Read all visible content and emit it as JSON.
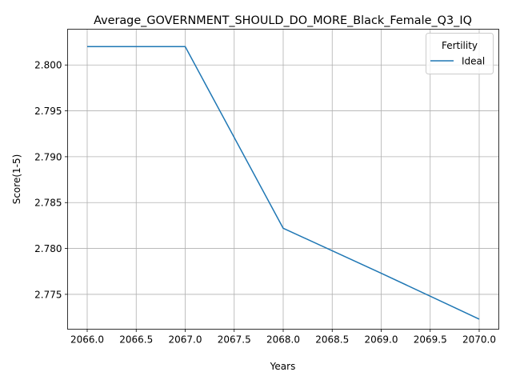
{
  "chart_data": {
    "type": "line",
    "title": "Average_GOVERNMENT_SHOULD_DO_MORE_Black_Female_Q3_IQ",
    "xlabel": "Years",
    "ylabel": "Score(1-5)",
    "xlim": [
      2065.8,
      2070.2
    ],
    "ylim": [
      2.7712,
      2.8039
    ],
    "x_ticks": [
      2066.0,
      2066.5,
      2067.0,
      2067.5,
      2068.0,
      2068.5,
      2069.0,
      2069.5,
      2070.0
    ],
    "x_tick_labels": [
      "2066.0",
      "2066.5",
      "2067.0",
      "2067.5",
      "2068.0",
      "2068.5",
      "2069.0",
      "2069.5",
      "2070.0"
    ],
    "y_ticks": [
      2.775,
      2.78,
      2.785,
      2.79,
      2.795,
      2.8
    ],
    "y_tick_labels": [
      "2.775",
      "2.780",
      "2.785",
      "2.790",
      "2.795",
      "2.800"
    ],
    "grid": true,
    "legend": {
      "title": "Fertility",
      "position": "top-right"
    },
    "series": [
      {
        "name": "Ideal",
        "color": "#1f77b4",
        "x": [
          2066,
          2067,
          2068,
          2069,
          2070
        ],
        "y": [
          2.802,
          2.802,
          2.7822,
          2.7773,
          2.7723
        ]
      }
    ]
  }
}
